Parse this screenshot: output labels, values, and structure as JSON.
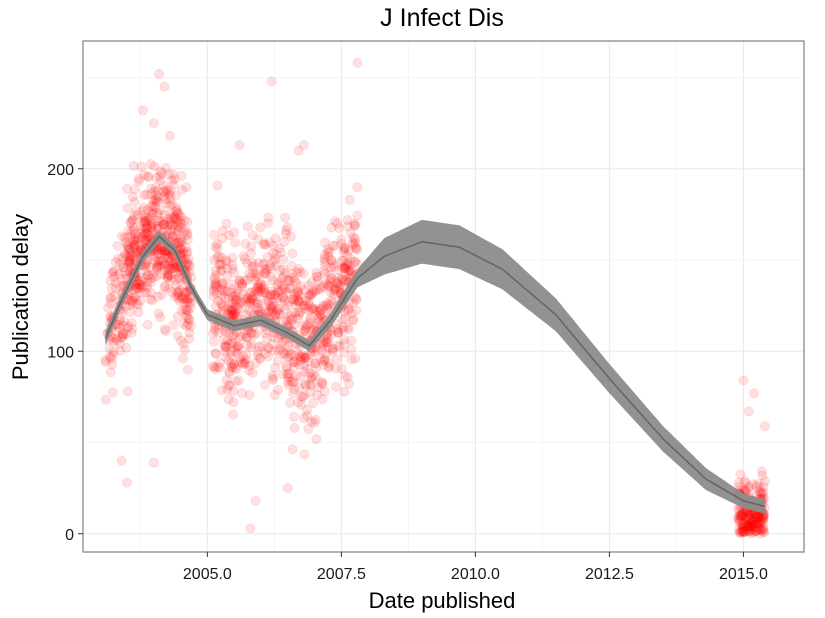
{
  "chart_data": {
    "type": "scatter",
    "title": "J Infect Dis",
    "xlabel": "Date published",
    "ylabel": "Publication delay",
    "xlim": [
      2002.68,
      2016.13
    ],
    "ylim": [
      -10,
      270
    ],
    "x_ticks": [
      2005.0,
      2007.5,
      2010.0,
      2012.5,
      2015.0
    ],
    "x_tick_labels": [
      "2005.0",
      "2007.5",
      "2010.0",
      "2012.5",
      "2015.0"
    ],
    "y_ticks": [
      0,
      100,
      200
    ],
    "y_tick_labels": [
      "0",
      "100",
      "200"
    ],
    "grid": true,
    "point_color": "#ff0000",
    "point_alpha": 0.12,
    "smooth_color": "#595959",
    "smooth_ribbon_color": "#8c8c8c",
    "series": [
      {
        "type": "scatter",
        "clusters": [
          {
            "x_range": [
              2003.1,
              2003.5
            ],
            "n": 90,
            "trend": [
              [
                2003.1,
                100
              ],
              [
                2003.3,
                125
              ],
              [
                2003.5,
                140
              ]
            ],
            "spread": 22
          },
          {
            "x_range": [
              2003.5,
              2004.7
            ],
            "n": 520,
            "trend": [
              [
                2003.5,
                140
              ],
              [
                2003.8,
                155
              ],
              [
                2004.1,
                165
              ],
              [
                2004.3,
                162
              ],
              [
                2004.5,
                148
              ],
              [
                2004.7,
                130
              ]
            ],
            "spread": 24
          },
          {
            "x_range": [
              2005.1,
              2005.6
            ],
            "n": 170,
            "trend": [
              [
                2005.1,
                130
              ],
              [
                2005.3,
                118
              ],
              [
                2005.6,
                115
              ]
            ],
            "spread": 28
          },
          {
            "x_range": [
              2005.6,
              2007.0
            ],
            "n": 420,
            "trend": [
              [
                2005.6,
                117
              ],
              [
                2006.0,
                126
              ],
              [
                2006.4,
                118
              ],
              [
                2006.8,
                102
              ],
              [
                2007.0,
                108
              ]
            ],
            "spread": 30
          },
          {
            "x_range": [
              2007.0,
              2007.8
            ],
            "n": 240,
            "trend": [
              [
                2007.0,
                110
              ],
              [
                2007.4,
                125
              ],
              [
                2007.8,
                145
              ]
            ],
            "spread": 28
          },
          {
            "x_range": [
              2014.9,
              2015.4
            ],
            "n": 210,
            "trend": [
              [
                2014.9,
                12
              ],
              [
                2015.15,
                10
              ],
              [
                2015.4,
                11
              ]
            ],
            "spread": 12
          }
        ],
        "outliers": [
          [
            2004.1,
            252
          ],
          [
            2004.2,
            245
          ],
          [
            2003.8,
            232
          ],
          [
            2004.0,
            225
          ],
          [
            2004.3,
            218
          ],
          [
            2006.2,
            248
          ],
          [
            2007.8,
            258
          ],
          [
            2005.6,
            213
          ],
          [
            2006.7,
            210
          ],
          [
            2006.8,
            213
          ],
          [
            2005.8,
            3
          ],
          [
            2006.5,
            25
          ],
          [
            2005.9,
            18
          ],
          [
            2003.4,
            40
          ],
          [
            2003.5,
            28
          ],
          [
            2004.0,
            39
          ],
          [
            2015.0,
            84
          ],
          [
            2015.2,
            77
          ],
          [
            2015.4,
            59
          ],
          [
            2015.1,
            67
          ]
        ]
      },
      {
        "type": "smooth",
        "fit": [
          [
            2003.1,
            107
          ],
          [
            2003.4,
            128
          ],
          [
            2003.8,
            152
          ],
          [
            2004.1,
            163
          ],
          [
            2004.4,
            155
          ],
          [
            2004.7,
            135
          ],
          [
            2005.0,
            120
          ],
          [
            2005.5,
            114
          ],
          [
            2006.0,
            117
          ],
          [
            2006.5,
            110
          ],
          [
            2006.9,
            103
          ],
          [
            2007.3,
            117
          ],
          [
            2007.8,
            140
          ],
          [
            2008.3,
            152
          ],
          [
            2009.0,
            160
          ],
          [
            2009.7,
            157
          ],
          [
            2010.5,
            145
          ],
          [
            2011.5,
            120
          ],
          [
            2012.5,
            85
          ],
          [
            2013.5,
            52
          ],
          [
            2014.3,
            30
          ],
          [
            2015.0,
            18
          ],
          [
            2015.4,
            15
          ]
        ],
        "se": [
          [
            2003.1,
            4
          ],
          [
            2004.1,
            3
          ],
          [
            2005.0,
            3
          ],
          [
            2006.9,
            3
          ],
          [
            2007.8,
            5
          ],
          [
            2008.3,
            10
          ],
          [
            2009.0,
            12
          ],
          [
            2009.7,
            12
          ],
          [
            2010.5,
            11
          ],
          [
            2011.5,
            9
          ],
          [
            2012.5,
            8
          ],
          [
            2013.5,
            7
          ],
          [
            2014.3,
            6
          ],
          [
            2015.0,
            4
          ],
          [
            2015.4,
            4
          ]
        ]
      }
    ]
  }
}
